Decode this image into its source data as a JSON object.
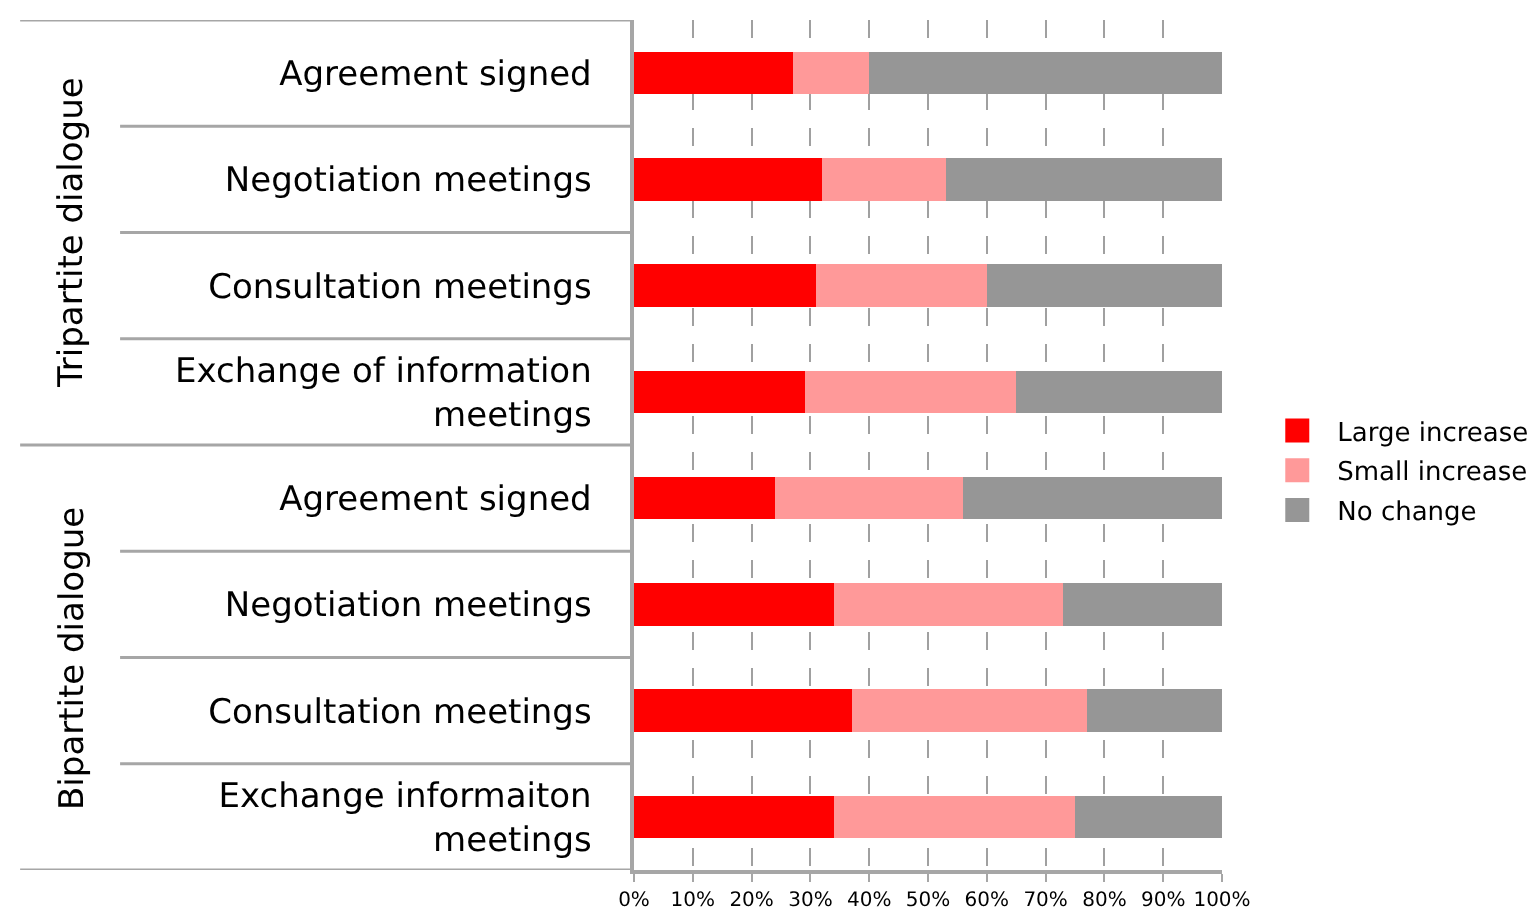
{
  "chart_data": {
    "type": "bar",
    "orientation": "horizontal",
    "stacked": true,
    "categories": [
      "Agreement signed",
      "Negotiation meetings",
      "Consultation meetings",
      "Exchange of information meetings",
      "Agreement signed",
      "Negotiation meetings",
      "Consultation meetings",
      "Exchange informaiton meetings"
    ],
    "annotations": [
      "Tripartite dialogue",
      "Bipartite dialogue"
    ],
    "series": [
      {
        "name": "Large increase",
        "color": "#ff0000",
        "values": [
          27,
          32,
          31,
          29,
          24,
          34,
          37,
          34
        ]
      },
      {
        "name": "Small increase",
        "color": "#ff9999",
        "values": [
          13,
          21,
          29,
          36,
          32,
          39,
          40,
          41
        ]
      },
      {
        "name": "No change",
        "color": "#969696",
        "values": [
          60,
          47,
          40,
          35,
          44,
          27,
          23,
          25
        ]
      }
    ],
    "xlim": [
      0,
      100
    ],
    "xticks": [
      {
        "value": 0,
        "label": "0%"
      },
      {
        "value": 10,
        "label": "10%"
      },
      {
        "value": 20,
        "label": "20%"
      },
      {
        "value": 30,
        "label": "30%"
      },
      {
        "value": 40,
        "label": "40%"
      },
      {
        "value": 50,
        "label": "50%"
      },
      {
        "value": 60,
        "label": "60%"
      },
      {
        "value": 70,
        "label": "70%"
      },
      {
        "value": 80,
        "label": "80%"
      },
      {
        "value": 90,
        "label": "90%"
      },
      {
        "value": 100,
        "label": "100%"
      }
    ],
    "grid": "x",
    "legend": "right"
  }
}
